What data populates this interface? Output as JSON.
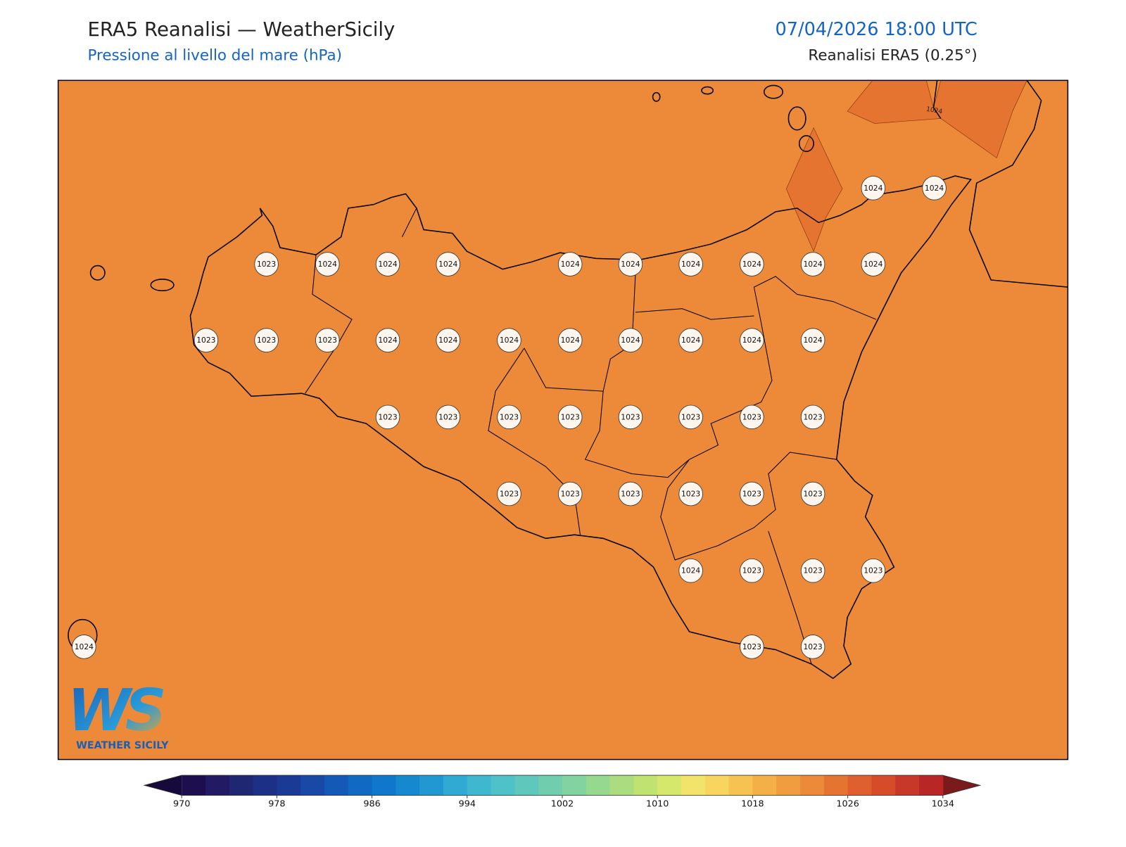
{
  "header": {
    "title": "ERA5 Reanalisi — WeatherSicily",
    "subtitle": "Pressione al livello del mare (hPa)",
    "datetime": "07/04/2026 18:00 UTC",
    "source": "Reanalisi ERA5 (0.25°)"
  },
  "map": {
    "base_level": 1022,
    "high_level": 1024,
    "contour_label": 1024,
    "stations": [
      1024,
      1024,
      1023,
      1024,
      1024,
      1024,
      1024,
      1024,
      1024,
      1024,
      1024,
      1024,
      1023,
      1023,
      1023,
      1024,
      1024,
      1024,
      1024,
      1024,
      1024,
      1024,
      1024,
      1023,
      1023,
      1023,
      1023,
      1023,
      1023,
      1023,
      1023,
      1023,
      1023,
      1023,
      1023,
      1023,
      1023,
      1024,
      1023,
      1023,
      1023,
      1024,
      1023,
      1023
    ]
  },
  "logo": {
    "mark": "WS",
    "text": "WEATHER SICILY"
  },
  "colorbar": {
    "range": [
      970,
      1034
    ],
    "ticks": [
      970,
      978,
      986,
      994,
      1002,
      1010,
      1018,
      1026,
      1034
    ],
    "under_color": "#160a3a",
    "over_color": "#7a1a1a",
    "colors": [
      "#1d0f4f",
      "#231a64",
      "#1f2773",
      "#1c3185",
      "#1a3a96",
      "#1849a7",
      "#1459b5",
      "#1069c3",
      "#0f78cc",
      "#1688d0",
      "#2298d2",
      "#30a9d3",
      "#3eb7cf",
      "#4fc1c8",
      "#5fc7bc",
      "#70cdae",
      "#82d39f",
      "#97d88f",
      "#abdd80",
      "#bfe271",
      "#d6e86c",
      "#f2e46a",
      "#f8d55f",
      "#f6c352",
      "#f3b047",
      "#ef9d3e",
      "#ec8a3a",
      "#e67431",
      "#df602e",
      "#d64c2b",
      "#c83828",
      "#b82625"
    ]
  }
}
